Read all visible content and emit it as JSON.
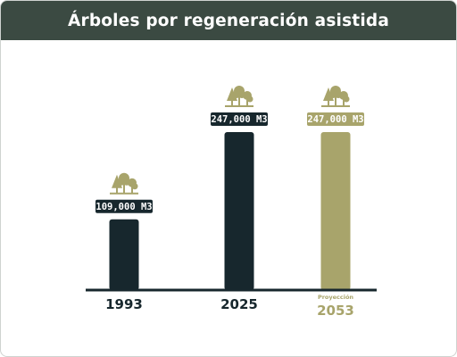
{
  "header": {
    "title": "Árboles por regeneración asistida"
  },
  "colors": {
    "header_bg": "#3b4a42",
    "dark_bar": "#17272d",
    "olive_bar": "#a8a46b",
    "baseline": "#17272d"
  },
  "icons": [
    "trees-icon"
  ],
  "chart_data": {
    "type": "bar",
    "title": "Árboles por regeneración asistida",
    "xlabel": "",
    "ylabel": "",
    "ylim": [
      0,
      247000
    ],
    "categories": [
      "1993",
      "2025",
      "2053"
    ],
    "values": [
      109000,
      247000,
      247000
    ],
    "value_labels": [
      "109,000 M3",
      "247,000 M3",
      "247,000 M3"
    ],
    "notes": [
      "",
      "",
      "Proyección"
    ],
    "bar_colors": [
      "#17272d",
      "#17272d",
      "#a8a46b"
    ],
    "grid": false,
    "legend": "none"
  }
}
